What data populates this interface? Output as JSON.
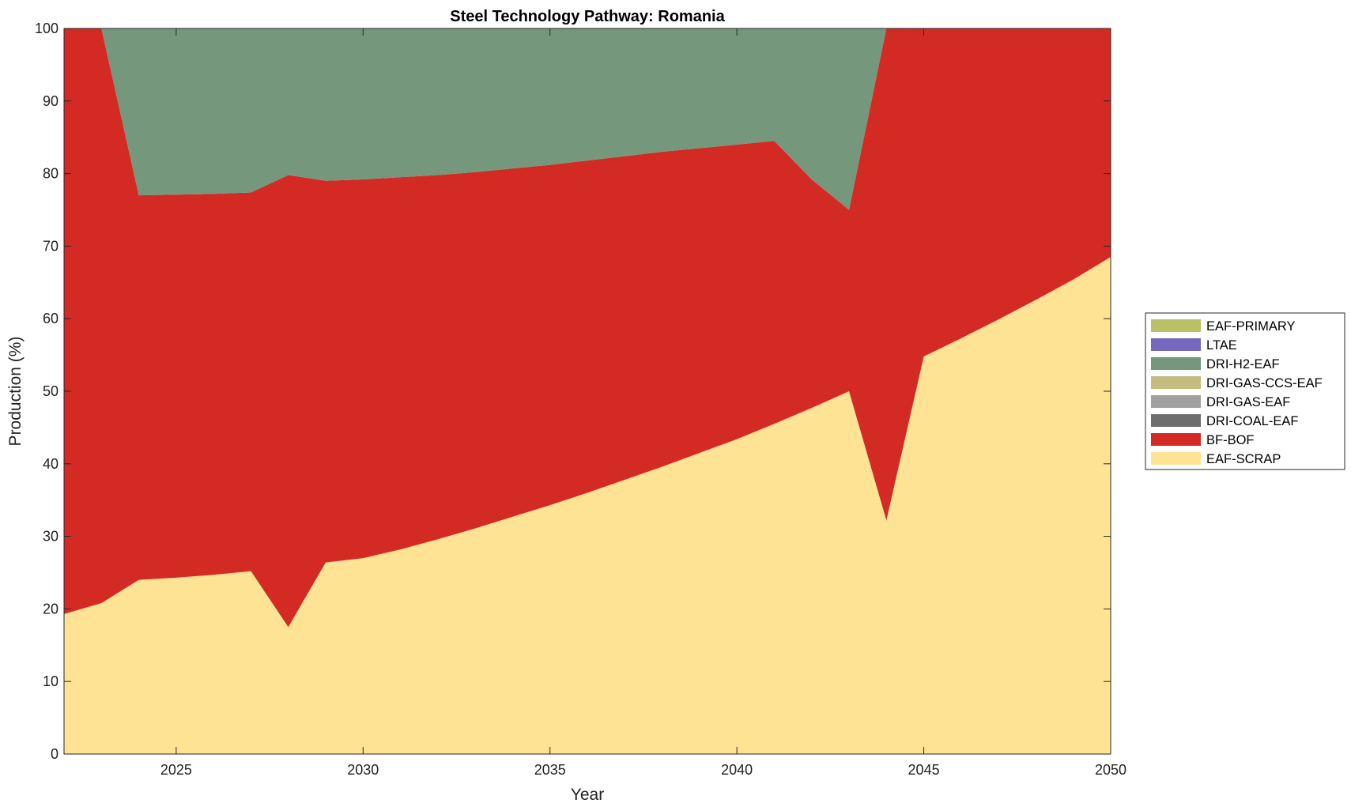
{
  "chart_data": {
    "type": "area",
    "stacked": true,
    "title": "Steel Technology Pathway: Romania",
    "xlabel": "Year",
    "ylabel": "Production (%)",
    "xlim": [
      2022,
      2050
    ],
    "ylim": [
      0,
      100
    ],
    "xticks": [
      2025,
      2030,
      2035,
      2040,
      2045,
      2050
    ],
    "yticks": [
      0,
      10,
      20,
      30,
      40,
      50,
      60,
      70,
      80,
      90,
      100
    ],
    "grid": false,
    "legend_position": "right",
    "x": [
      2022,
      2023,
      2024,
      2025,
      2026,
      2027,
      2028,
      2029,
      2030,
      2031,
      2032,
      2033,
      2034,
      2035,
      2036,
      2037,
      2038,
      2039,
      2040,
      2041,
      2042,
      2043,
      2044,
      2045,
      2046,
      2047,
      2048,
      2049,
      2050
    ],
    "series": [
      {
        "name": "EAF-SCRAP",
        "color": "#FFE394",
        "values": [
          19.3,
          20.8,
          24.0,
          24.3,
          24.7,
          25.2,
          17.5,
          26.4,
          27.0,
          28.2,
          29.6,
          31.1,
          32.7,
          34.3,
          36.0,
          37.8,
          39.6,
          41.5,
          43.4,
          45.5,
          47.7,
          50.0,
          32.2,
          54.8,
          57.3,
          59.9,
          62.6,
          65.4,
          68.5
        ]
      },
      {
        "name": "BF-BOF",
        "color": "#D32A24",
        "values": [
          80.7,
          79.2,
          53.0,
          52.8,
          52.5,
          52.2,
          62.3,
          52.6,
          52.2,
          51.3,
          50.2,
          49.1,
          48.0,
          46.9,
          45.8,
          44.6,
          43.4,
          42.0,
          40.6,
          39.0,
          31.5,
          25.0,
          67.8,
          45.2,
          42.7,
          40.1,
          37.4,
          34.6,
          31.5
        ]
      },
      {
        "name": "DRI-COAL-EAF",
        "color": "#6E6E6E",
        "values": [
          0,
          0,
          0,
          0,
          0,
          0,
          0,
          0,
          0,
          0,
          0,
          0,
          0,
          0,
          0,
          0,
          0,
          0,
          0,
          0,
          0,
          0,
          0,
          0,
          0,
          0,
          0,
          0,
          0
        ]
      },
      {
        "name": "DRI-GAS-EAF",
        "color": "#A0A0A0",
        "values": [
          0,
          0,
          0,
          0,
          0,
          0,
          0,
          0,
          0,
          0,
          0,
          0,
          0,
          0,
          0,
          0,
          0,
          0,
          0,
          0,
          0,
          0,
          0,
          0,
          0,
          0,
          0,
          0,
          0
        ]
      },
      {
        "name": "DRI-GAS-CCS-EAF",
        "color": "#C4BB7F",
        "values": [
          0,
          0,
          0,
          0,
          0,
          0,
          0,
          0,
          0,
          0,
          0,
          0,
          0,
          0,
          0,
          0,
          0,
          0,
          0,
          0,
          0,
          0,
          0,
          0,
          0,
          0,
          0,
          0,
          0
        ]
      },
      {
        "name": "DRI-H2-EAF",
        "color": "#75977C",
        "values": [
          0,
          0,
          23.0,
          22.9,
          22.8,
          22.6,
          20.2,
          21.0,
          20.8,
          20.5,
          20.2,
          19.8,
          19.3,
          18.8,
          18.2,
          17.6,
          17.0,
          16.5,
          16.0,
          15.5,
          20.8,
          25.0,
          0,
          0,
          0,
          0,
          0,
          0,
          0
        ]
      },
      {
        "name": "LTAE",
        "color": "#7568BC",
        "values": [
          0,
          0,
          0,
          0,
          0,
          0,
          0,
          0,
          0,
          0,
          0,
          0,
          0,
          0,
          0,
          0,
          0,
          0,
          0,
          0,
          0,
          0,
          0,
          0,
          0,
          0,
          0,
          0,
          0
        ]
      },
      {
        "name": "EAF-PRIMARY",
        "color": "#BAC066",
        "values": [
          0,
          0,
          0,
          0,
          0,
          0,
          0,
          0,
          0,
          0,
          0,
          0,
          0,
          0,
          0,
          0,
          0,
          0,
          0,
          0,
          0,
          0,
          0,
          0,
          0,
          0,
          0,
          0,
          0
        ]
      }
    ],
    "legend_order": [
      "EAF-PRIMARY",
      "LTAE",
      "DRI-H2-EAF",
      "DRI-GAS-CCS-EAF",
      "DRI-GAS-EAF",
      "DRI-COAL-EAF",
      "BF-BOF",
      "EAF-SCRAP"
    ]
  }
}
